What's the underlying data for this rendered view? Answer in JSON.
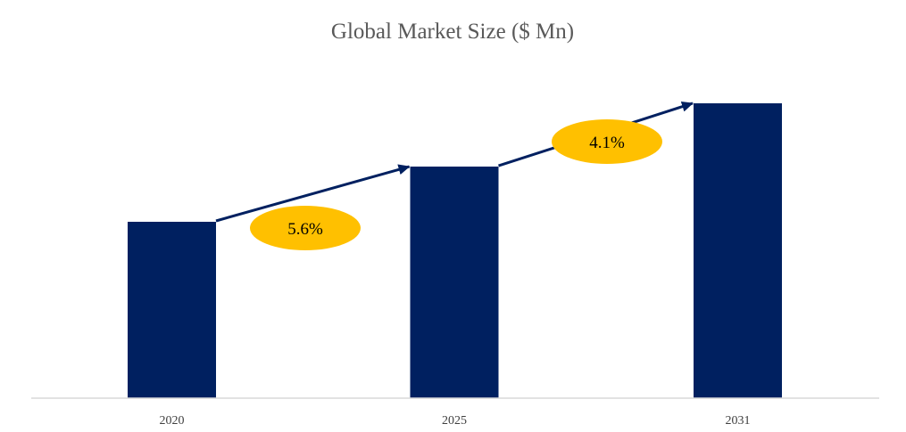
{
  "chart_data": {
    "type": "bar",
    "title": "Global Market Size ($ Mn)",
    "categories": [
      "2020",
      "2025",
      "2031"
    ],
    "values": [
      100,
      131.3,
      167.2
    ],
    "value_note": "relative bar heights (no axis values printed)",
    "xlabel": "",
    "ylabel": "",
    "grid": false,
    "annotations": [
      {
        "label": "5.6%",
        "from": "2020",
        "to": "2025"
      },
      {
        "label": "4.1%",
        "from": "2025",
        "to": "2031"
      }
    ],
    "colors": {
      "bar": "#002060",
      "arrow": "#002060",
      "badge": "#FFC000",
      "title": "#595959",
      "axis": "#D9D9D9"
    }
  }
}
